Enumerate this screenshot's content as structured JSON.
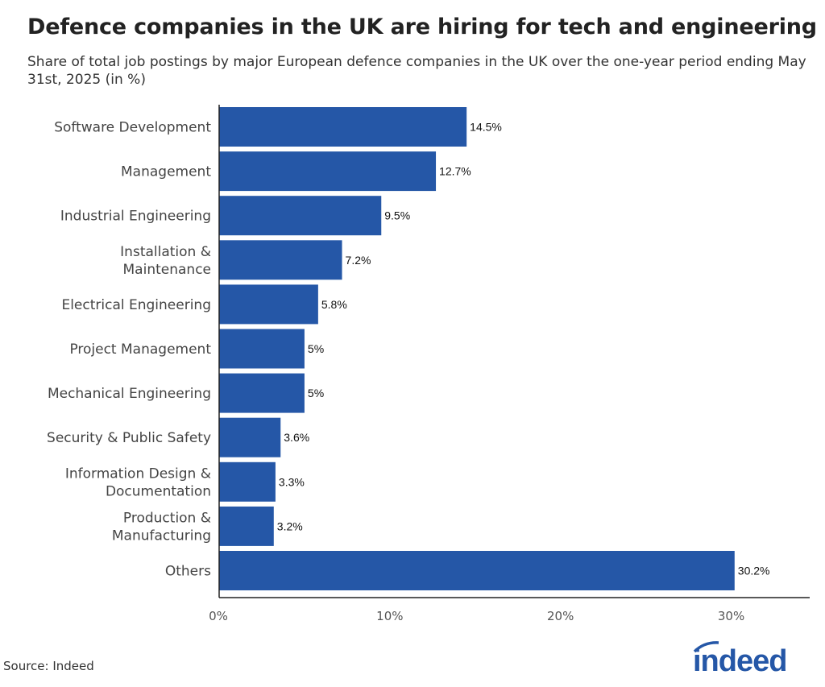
{
  "chart_data": {
    "type": "bar",
    "orientation": "horizontal",
    "title": "Defence companies in the UK are hiring for tech and engineering",
    "subtitle": "Share of total job postings by major European defence companies in the UK over the one-year period ending May 31st, 2025 (in %)",
    "categories": [
      "Software Development",
      "Management",
      "Industrial Engineering",
      "Installation & Maintenance",
      "Electrical Engineering",
      "Project Management",
      "Mechanical Engineering",
      "Security & Public Safety",
      "Information Design & Documentation",
      "Production & Manufacturing",
      "Others"
    ],
    "category_lines": [
      [
        "Software Development"
      ],
      [
        "Management"
      ],
      [
        "Industrial Engineering"
      ],
      [
        "Installation &",
        "Maintenance"
      ],
      [
        "Electrical Engineering"
      ],
      [
        "Project Management"
      ],
      [
        "Mechanical Engineering"
      ],
      [
        "Security & Public Safety"
      ],
      [
        "Information Design &",
        "Documentation"
      ],
      [
        "Production &",
        "Manufacturing"
      ],
      [
        "Others"
      ]
    ],
    "values": [
      14.5,
      12.7,
      9.5,
      7.2,
      5.8,
      5,
      5,
      3.6,
      3.3,
      3.2,
      30.2
    ],
    "data_labels": [
      "14.5%",
      "12.7%",
      "9.5%",
      "7.2%",
      "5.8%",
      "5%",
      "5%",
      "3.6%",
      "3.3%",
      "3.2%",
      "30.2%"
    ],
    "xticks": [
      0,
      10,
      20,
      30
    ],
    "xtick_labels": [
      "0%",
      "10%",
      "20%",
      "30%"
    ],
    "xlim": [
      0,
      34.6
    ],
    "grid": false,
    "bar_color": "#2557a7"
  },
  "source": "Source: Indeed",
  "logo_text": "indeed",
  "brand_color": "#2557a7"
}
